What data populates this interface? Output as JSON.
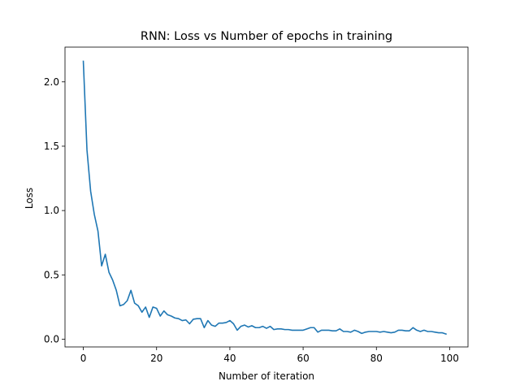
{
  "chart_data": {
    "type": "line",
    "title": "RNN: Loss vs Number of epochs in training",
    "xlabel": "Number of iteration",
    "ylabel": "Loss",
    "xlim": [
      -5,
      105
    ],
    "ylim": [
      -0.06,
      2.27
    ],
    "xticks": [
      0,
      20,
      40,
      60,
      80,
      100
    ],
    "yticks": [
      0.0,
      0.5,
      1.0,
      1.5,
      2.0
    ],
    "xtick_labels": [
      "0",
      "20",
      "40",
      "60",
      "80",
      "100"
    ],
    "ytick_labels": [
      "0.0",
      "0.5",
      "1.0",
      "1.5",
      "2.0"
    ],
    "grid": false,
    "colors": {
      "series": "#1f77b4"
    },
    "series": [
      {
        "x": [
          0,
          1,
          2,
          3,
          4,
          5,
          6,
          7,
          8,
          9,
          10,
          11,
          12,
          13,
          14,
          15,
          16,
          17,
          18,
          19,
          20,
          21,
          22,
          23,
          24,
          25,
          26,
          27,
          28,
          29,
          30,
          31,
          32,
          33,
          34,
          35,
          36,
          37,
          38,
          39,
          40,
          41,
          42,
          43,
          44,
          45,
          46,
          47,
          48,
          49,
          50,
          51,
          52,
          53,
          54,
          55,
          56,
          57,
          58,
          59,
          60,
          61,
          62,
          63,
          64,
          65,
          66,
          67,
          68,
          69,
          70,
          71,
          72,
          73,
          74,
          75,
          76,
          77,
          78,
          79,
          80,
          81,
          82,
          83,
          84,
          85,
          86,
          87,
          88,
          89,
          90,
          91,
          92,
          93,
          94,
          95,
          96,
          97,
          98,
          99
        ],
        "y": [
          2.16,
          1.47,
          1.15,
          0.97,
          0.84,
          0.57,
          0.66,
          0.52,
          0.46,
          0.38,
          0.26,
          0.27,
          0.3,
          0.38,
          0.28,
          0.26,
          0.21,
          0.25,
          0.17,
          0.25,
          0.24,
          0.18,
          0.22,
          0.19,
          0.18,
          0.165,
          0.16,
          0.145,
          0.15,
          0.12,
          0.155,
          0.16,
          0.16,
          0.09,
          0.145,
          0.11,
          0.1,
          0.125,
          0.125,
          0.13,
          0.145,
          0.12,
          0.07,
          0.1,
          0.11,
          0.095,
          0.105,
          0.09,
          0.09,
          0.1,
          0.085,
          0.1,
          0.075,
          0.08,
          0.08,
          0.075,
          0.075,
          0.07,
          0.07,
          0.07,
          0.07,
          0.08,
          0.09,
          0.09,
          0.055,
          0.07,
          0.07,
          0.07,
          0.065,
          0.065,
          0.08,
          0.06,
          0.06,
          0.055,
          0.07,
          0.06,
          0.045,
          0.055,
          0.06,
          0.06,
          0.06,
          0.055,
          0.06,
          0.055,
          0.05,
          0.055,
          0.07,
          0.07,
          0.065,
          0.065,
          0.09,
          0.07,
          0.06,
          0.07,
          0.06,
          0.06,
          0.055,
          0.05,
          0.05,
          0.04
        ]
      }
    ]
  }
}
